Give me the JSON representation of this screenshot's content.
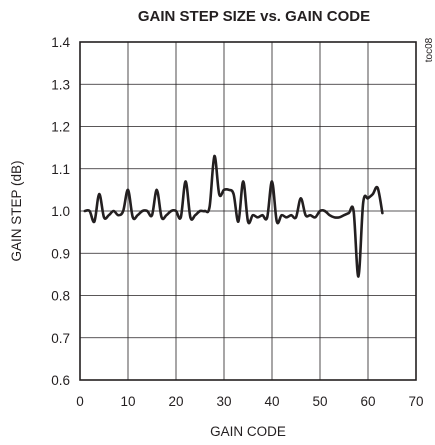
{
  "chart_data": {
    "type": "line",
    "title": "GAIN STEP SIZE vs. GAIN CODE",
    "xlabel": "GAIN CODE",
    "ylabel": "GAIN STEP (dB)",
    "tag": "toc08",
    "xlim": [
      0,
      70
    ],
    "ylim": [
      0.6,
      1.4
    ],
    "xticks": [
      0,
      10,
      20,
      30,
      40,
      50,
      60,
      70
    ],
    "yticks": [
      "0.6",
      "0.7",
      "0.8",
      "0.9",
      "1.0",
      "1.1",
      "1.2",
      "1.3",
      "1.4"
    ],
    "grid": true,
    "series": [
      {
        "x": [
          1,
          2,
          3,
          4,
          5,
          6,
          7,
          8,
          9,
          10,
          11,
          12,
          13,
          14,
          15,
          16,
          17,
          18,
          19,
          20,
          21,
          22,
          23,
          24,
          25,
          26,
          27,
          28,
          29,
          30,
          31,
          32,
          33,
          34,
          35,
          36,
          37,
          38,
          39,
          40,
          41,
          42,
          43,
          44,
          45,
          46,
          47,
          48,
          49,
          50,
          51,
          52,
          53,
          54,
          55,
          56,
          57,
          58,
          59,
          60,
          61,
          62,
          63
        ],
        "values": [
          1.0,
          1.0,
          0.975,
          1.04,
          0.985,
          0.99,
          1.0,
          0.99,
          1.0,
          1.05,
          0.985,
          0.99,
          1.0,
          1.0,
          0.99,
          1.05,
          0.985,
          0.99,
          1.0,
          1.0,
          0.985,
          1.07,
          0.985,
          0.99,
          1.0,
          1.0,
          1.01,
          1.13,
          1.04,
          1.05,
          1.05,
          1.04,
          0.975,
          1.07,
          0.975,
          0.99,
          0.985,
          0.99,
          0.985,
          1.07,
          0.975,
          0.99,
          0.985,
          0.99,
          0.985,
          1.03,
          0.99,
          0.99,
          0.985,
          1.0,
          1.0,
          0.99,
          0.985,
          0.985,
          0.99,
          0.995,
          1.0,
          0.845,
          1.02,
          1.03,
          1.04,
          1.055,
          0.995
        ]
      }
    ]
  }
}
